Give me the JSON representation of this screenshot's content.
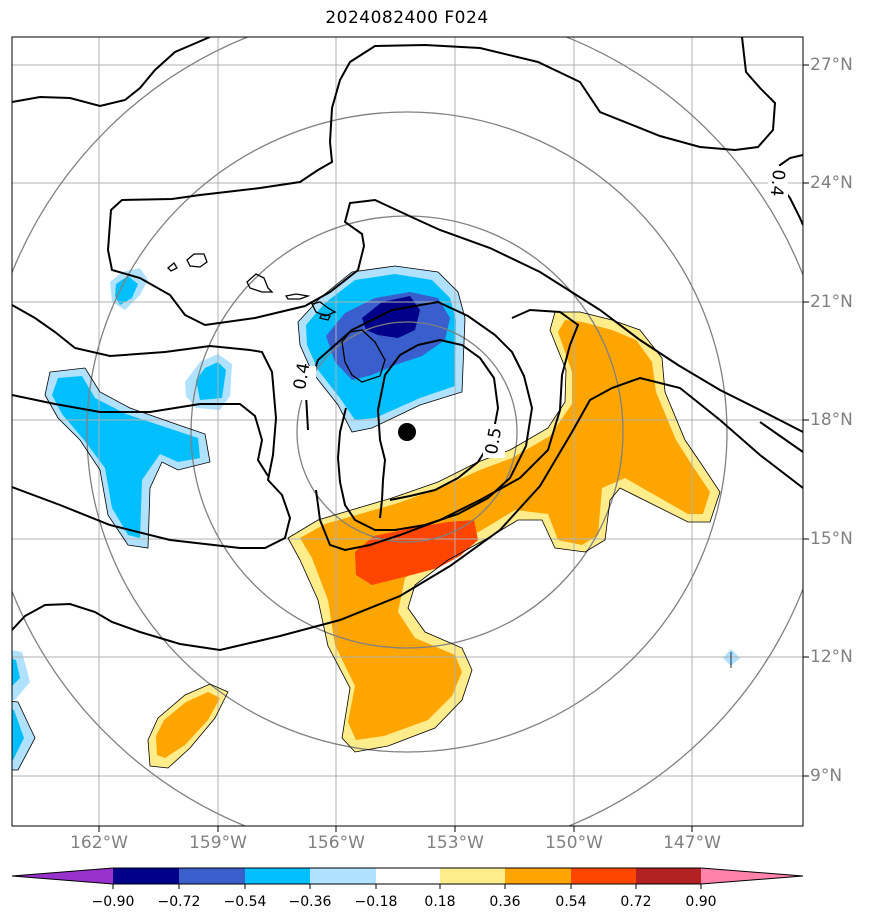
{
  "title": "2024082400 F024",
  "lon_labels": [
    "162°W",
    "159°W",
    "156°W",
    "153°W",
    "150°W",
    "147°W"
  ],
  "lat_labels": [
    "27°N",
    "24°N",
    "21°N",
    "18°N",
    "15°N",
    "12°N",
    "9°N"
  ],
  "contour_labels": [
    "0.4",
    "0.5",
    "0.4"
  ],
  "colorbar": {
    "levels": [
      "−0.90",
      "−0.72",
      "−0.54",
      "−0.36",
      "−0.18",
      "0.18",
      "0.36",
      "0.54",
      "0.72",
      "0.90"
    ],
    "colors": [
      "#9932cc",
      "#00008b",
      "#3a5fcd",
      "#00bfff",
      "#b0e2ff",
      "#ffffff",
      "#ffec8b",
      "#ffa500",
      "#ff4500",
      "#b22222",
      "#ff82ab"
    ]
  },
  "colors": {
    "grid": "#b0b0b0",
    "range_rings": "#808080",
    "coast": "#000000",
    "contours": "#000000",
    "storm_center": "#000000"
  },
  "icons": [
    "storm-center-marker"
  ]
}
